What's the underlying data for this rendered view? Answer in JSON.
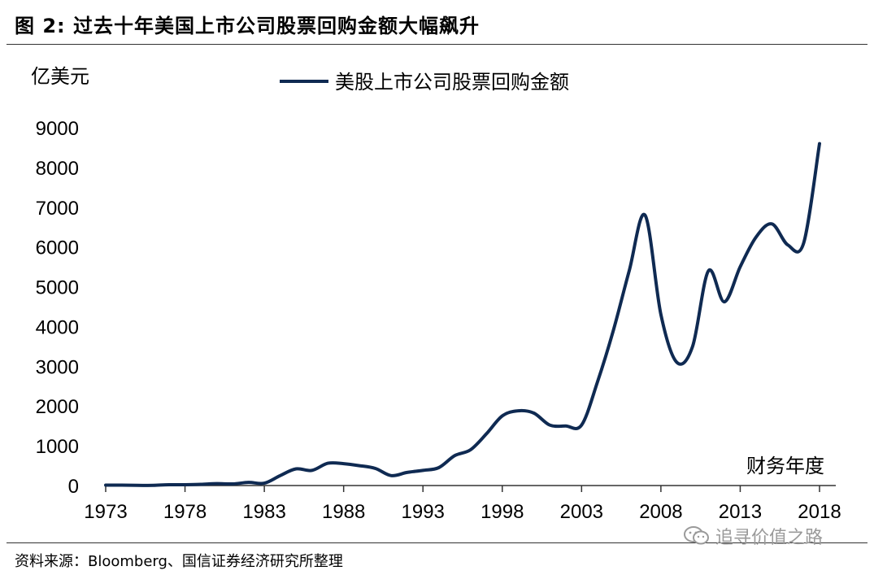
{
  "figure": {
    "title": "图  2:  过去十年美国上市公司股票回购金额大幅飙升",
    "source": "资料来源：Bloomberg、国信证券经济研究所整理",
    "watermark": "追寻价值之路"
  },
  "colors": {
    "line": "#0f2a52",
    "axis": "#333333",
    "text": "#000000",
    "watermark": "#9a9a9a"
  },
  "icons": {
    "watermark": "wechat-icon"
  },
  "chart_data": {
    "type": "line",
    "title": "",
    "ylabel": "亿美元",
    "xlabel": "财务年度",
    "legend_position": "top",
    "grid": false,
    "xlim": [
      1973,
      2018
    ],
    "ylim": [
      0,
      9000
    ],
    "x_ticks": [
      "1973",
      "1978",
      "1983",
      "1988",
      "1993",
      "1998",
      "2003",
      "2008",
      "2013",
      "2018"
    ],
    "y_ticks": [
      "0",
      "1000",
      "2000",
      "3000",
      "4000",
      "5000",
      "6000",
      "7000",
      "8000",
      "9000"
    ],
    "series": [
      {
        "name": "美股上市公司股票回购金额",
        "x": [
          1973,
          1974,
          1975,
          1976,
          1977,
          1978,
          1979,
          1980,
          1981,
          1982,
          1983,
          1984,
          1985,
          1986,
          1987,
          1988,
          1989,
          1990,
          1991,
          1992,
          1993,
          1994,
          1995,
          1996,
          1997,
          1998,
          1999,
          2000,
          2001,
          2002,
          2003,
          2004,
          2005,
          2006,
          2007,
          2008,
          2009,
          2010,
          2011,
          2012,
          2013,
          2014,
          2015,
          2016,
          2017,
          2018
        ],
        "values": [
          10,
          10,
          5,
          5,
          20,
          20,
          30,
          50,
          40,
          80,
          60,
          250,
          420,
          380,
          560,
          550,
          500,
          430,
          250,
          330,
          380,
          450,
          750,
          900,
          1300,
          1750,
          1880,
          1820,
          1520,
          1500,
          1520,
          2600,
          3900,
          5400,
          6800,
          4300,
          3100,
          3500,
          5400,
          4620,
          5500,
          6250,
          6580,
          6050,
          6100,
          8600
        ]
      }
    ]
  }
}
